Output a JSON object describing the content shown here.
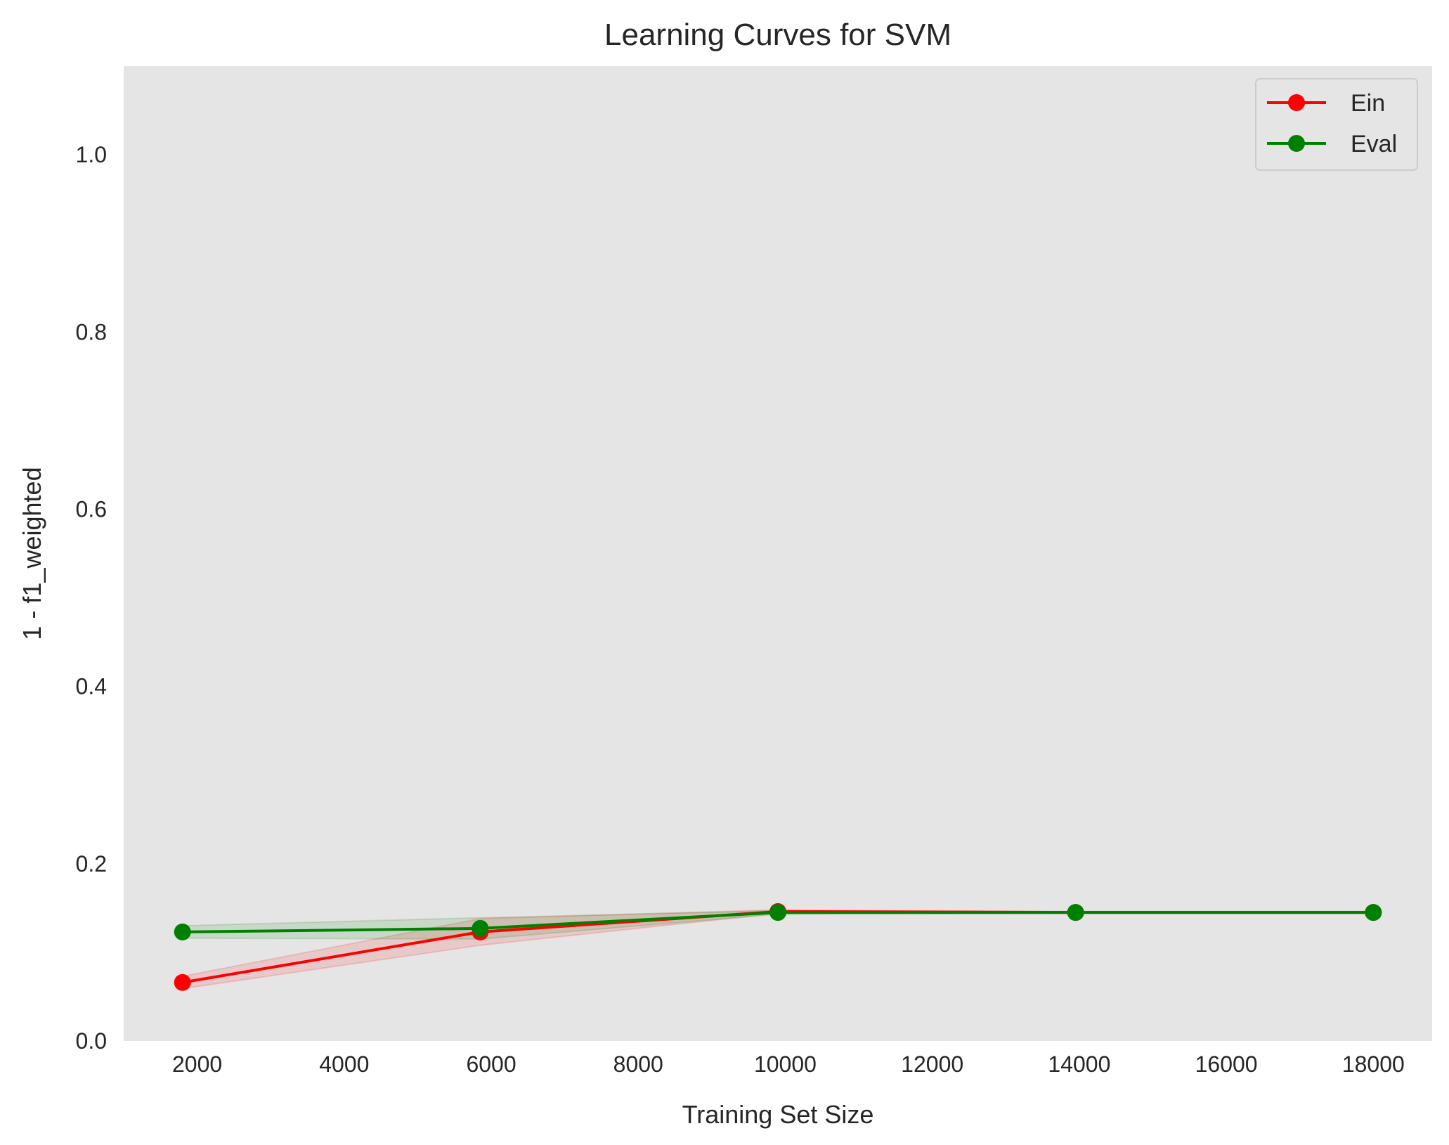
{
  "chart_data": {
    "type": "line",
    "title": "Learning Curves for SVM",
    "xlabel": "Training Set Size",
    "ylabel": "1 - f1_weighted",
    "xlim": [
      1000,
      18800
    ],
    "ylim": [
      0.0,
      1.1
    ],
    "x_ticks": [
      2000,
      4000,
      6000,
      8000,
      10000,
      12000,
      14000,
      16000,
      18000
    ],
    "y_ticks": [
      0.0,
      0.2,
      0.4,
      0.6,
      0.8,
      1.0
    ],
    "y_tick_labels": [
      "0.0",
      "0.2",
      "0.4",
      "0.6",
      "0.8",
      "1.0"
    ],
    "grid": false,
    "legend_position": "top-right",
    "series": [
      {
        "name": "Ein",
        "color": "#ff0000",
        "marker": "circle",
        "x": [
          1800,
          5850,
          9900,
          13950,
          18000
        ],
        "y": [
          0.066,
          0.123,
          0.146,
          0.145,
          0.145
        ],
        "band_lower": [
          0.059,
          0.108,
          0.144,
          0.144,
          0.144
        ],
        "band_upper": [
          0.073,
          0.138,
          0.148,
          0.146,
          0.146
        ]
      },
      {
        "name": "Eval",
        "color": "#008000",
        "marker": "circle",
        "x": [
          1800,
          5850,
          9900,
          13950,
          18000
        ],
        "y": [
          0.123,
          0.127,
          0.145,
          0.145,
          0.145
        ],
        "band_lower": [
          0.116,
          0.115,
          0.143,
          0.144,
          0.144
        ],
        "band_upper": [
          0.13,
          0.139,
          0.147,
          0.146,
          0.146
        ]
      }
    ]
  }
}
